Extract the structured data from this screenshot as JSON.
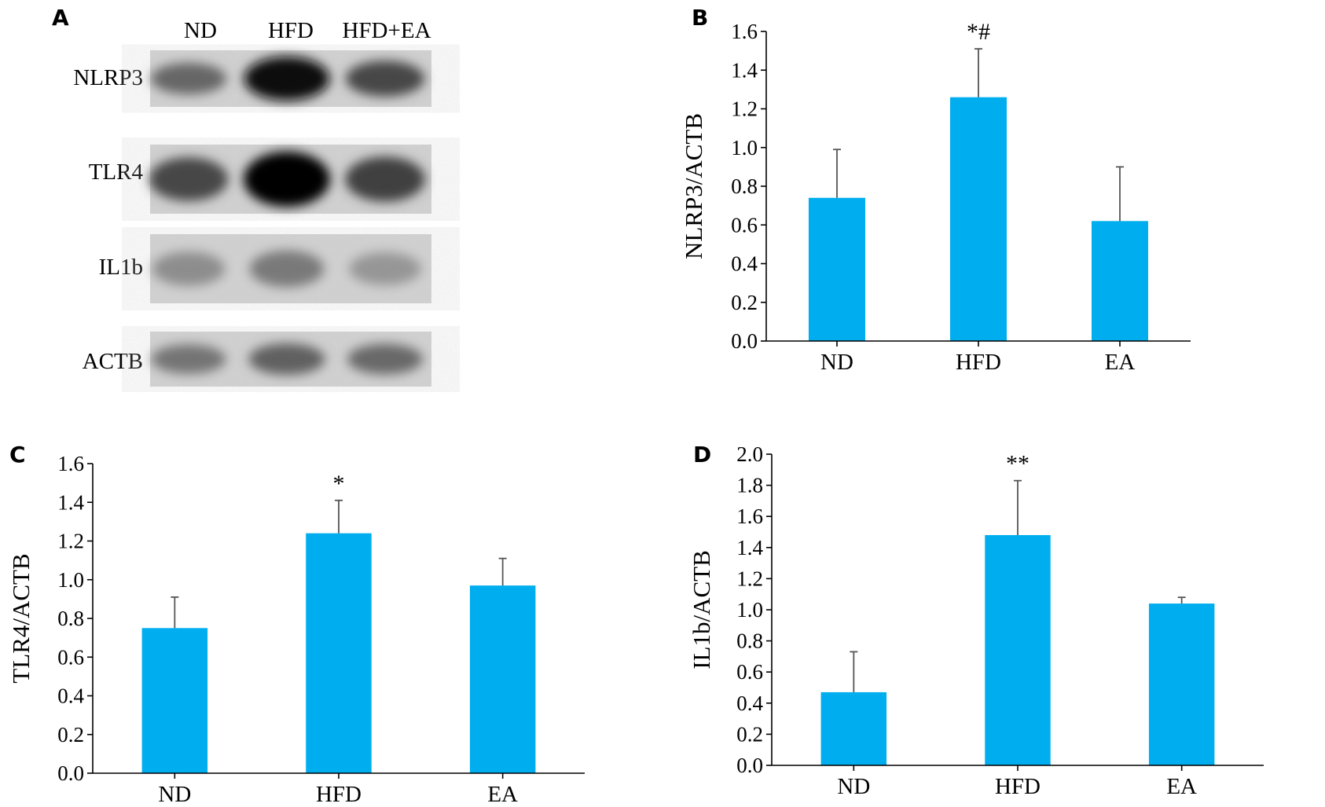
{
  "panel_a": {
    "label": "A",
    "lanes": [
      "ND",
      "HFD",
      "HFD+EA"
    ],
    "blots": [
      {
        "name": "NLRP3",
        "intensity": [
          0.45,
          0.95,
          0.62
        ]
      },
      {
        "name": "TLR4",
        "intensity": [
          0.62,
          1.0,
          0.66
        ]
      },
      {
        "name": "IL1b",
        "intensity": [
          0.3,
          0.38,
          0.26
        ]
      },
      {
        "name": "ACTB",
        "intensity": [
          0.4,
          0.48,
          0.44
        ]
      }
    ]
  },
  "chart_data": [
    {
      "panel_label": "B",
      "type": "bar",
      "categories": [
        "ND",
        "HFD",
        "EA"
      ],
      "values": [
        0.74,
        1.26,
        0.62
      ],
      "errors": [
        0.25,
        0.25,
        0.28
      ],
      "annotations": [
        "",
        "*#",
        ""
      ],
      "ylabel": "NLRP3/ACTB",
      "xlabel": "",
      "ylim": [
        0,
        1.6
      ],
      "ytick_step": 0.2,
      "yticks": [
        "0.0",
        "0.2",
        "0.4",
        "0.6",
        "0.8",
        "1.0",
        "1.2",
        "1.4",
        "1.6"
      ],
      "bar_color": "#00aeef"
    },
    {
      "panel_label": "C",
      "type": "bar",
      "categories": [
        "ND",
        "HFD",
        "EA"
      ],
      "values": [
        0.75,
        1.24,
        0.97
      ],
      "errors": [
        0.16,
        0.17,
        0.14
      ],
      "annotations": [
        "",
        "*",
        ""
      ],
      "ylabel": "TLR4/ACTB",
      "xlabel": "",
      "ylim": [
        0,
        1.6
      ],
      "ytick_step": 0.2,
      "yticks": [
        "0.0",
        "0.2",
        "0.4",
        "0.6",
        "0.8",
        "1.0",
        "1.2",
        "1.4",
        "1.6"
      ],
      "bar_color": "#00aeef"
    },
    {
      "panel_label": "D",
      "type": "bar",
      "categories": [
        "ND",
        "HFD",
        "EA"
      ],
      "values": [
        0.47,
        1.48,
        1.04
      ],
      "errors": [
        0.26,
        0.35,
        0.04
      ],
      "annotations": [
        "",
        "**",
        ""
      ],
      "ylabel": "IL1b/ACTB",
      "xlabel": "",
      "ylim": [
        0,
        2.0
      ],
      "ytick_step": 0.2,
      "yticks": [
        "0.0",
        "0.2",
        "0.4",
        "0.6",
        "0.8",
        "1.0",
        "1.2",
        "1.4",
        "1.6",
        "1.8",
        "2.0"
      ],
      "bar_color": "#00aeef"
    }
  ]
}
